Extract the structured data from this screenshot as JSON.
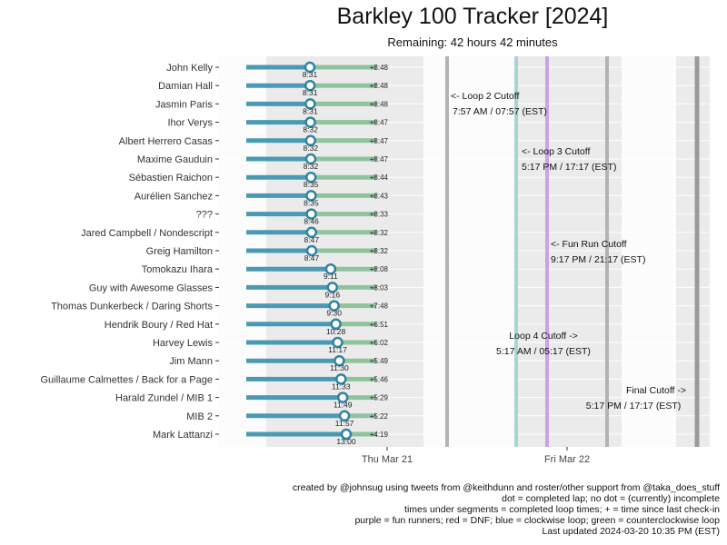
{
  "title": "Barkley 100 Tracker [2024]",
  "subtitle": "Remaining: 42 hours 42 minutes",
  "chart_data": {
    "type": "timeline",
    "x_tick_labels": [
      "Thu Mar 21",
      "Fri Mar 22"
    ],
    "runners": [
      {
        "name": "John Kelly",
        "loop_time": "8:31",
        "since_checkin": "+8:48"
      },
      {
        "name": "Damian Hall",
        "loop_time": "8:31",
        "since_checkin": "+8:48"
      },
      {
        "name": "Jasmin Paris",
        "loop_time": "8:31",
        "since_checkin": "+8:48"
      },
      {
        "name": "Ihor Verys",
        "loop_time": "8:32",
        "since_checkin": "+8:47"
      },
      {
        "name": "Albert Herrero Casas",
        "loop_time": "8:32",
        "since_checkin": "+8:47"
      },
      {
        "name": "Maxime Gauduin",
        "loop_time": "8:32",
        "since_checkin": "+8:47"
      },
      {
        "name": "Sébastien Raichon",
        "loop_time": "8:35",
        "since_checkin": "+8:44"
      },
      {
        "name": "Aurélien Sanchez",
        "loop_time": "8:35",
        "since_checkin": "+8:43"
      },
      {
        "name": "???",
        "loop_time": "8:46",
        "since_checkin": "+8:33"
      },
      {
        "name": "Jared Campbell / Nondescript",
        "loop_time": "8:47",
        "since_checkin": "+8:32"
      },
      {
        "name": "Greig Hamilton",
        "loop_time": "8:47",
        "since_checkin": "+8:32"
      },
      {
        "name": "Tomokazu Ihara",
        "loop_time": "9:11",
        "since_checkin": "+8:08"
      },
      {
        "name": "Guy with Awesome Glasses",
        "loop_time": "9:16",
        "since_checkin": "+8:03"
      },
      {
        "name": "Thomas Dunkerbeck / Daring Shorts",
        "loop_time": "9:30",
        "since_checkin": "+7:48"
      },
      {
        "name": "Hendrik Boury / Red Hat",
        "loop_time": "10:28",
        "since_checkin": "+6:51"
      },
      {
        "name": "Harvey Lewis",
        "loop_time": "11:17",
        "since_checkin": "+6:02"
      },
      {
        "name": "Jim Mann",
        "loop_time": "11:30",
        "since_checkin": "+5:49"
      },
      {
        "name": "Guillaume Calmettes / Back for a Page",
        "loop_time": "11:33",
        "since_checkin": "+5:46"
      },
      {
        "name": "Harald Zundel / MIB 1",
        "loop_time": "11:49",
        "since_checkin": "+5:29"
      },
      {
        "name": "MIB 2",
        "loop_time": "11:57",
        "since_checkin": "+5:22"
      },
      {
        "name": "Mark Lattanzi",
        "loop_time": "13:00",
        "since_checkin": "+4:19"
      }
    ],
    "cutoffs": [
      {
        "label": "<- Loop 2 Cutoff",
        "time": "7:57 AM / 07:57 (EST)"
      },
      {
        "label": "<- Loop 3 Cutoff",
        "time": "5:17 PM / 17:17 (EST)"
      },
      {
        "label": "<- Fun Run Cutoff",
        "time": "9:17 PM / 21:17 (EST)"
      },
      {
        "label": "Loop 4 Cutoff ->",
        "time": "5:17 AM / 05:17 (EST)"
      },
      {
        "label": "Final Cutoff ->",
        "time": "5:17 PM / 17:17 (EST)"
      }
    ],
    "colors": {
      "clockwise": "#4a9ab5",
      "counterclockwise": "#8fc39c",
      "fun_run": "#c9a3e6",
      "cutoff_gray": "#b3b3b3",
      "cutoff_cyan": "#aad3d9",
      "panel": "#ebebeb"
    }
  },
  "footer": {
    "lines": [
      "created by @johnsug using tweets from @keithdunn and roster/other support from @taka_does_stuff",
      "dot = completed lap; no dot = (currently) incomplete",
      "times under segments = completed loop times; + = time since last check-in",
      "purple = fun runners; red = DNF; blue = clockwise loop; green = counterclockwise loop",
      "Last updated 2024-03-20 10:35 PM (EST)"
    ]
  }
}
